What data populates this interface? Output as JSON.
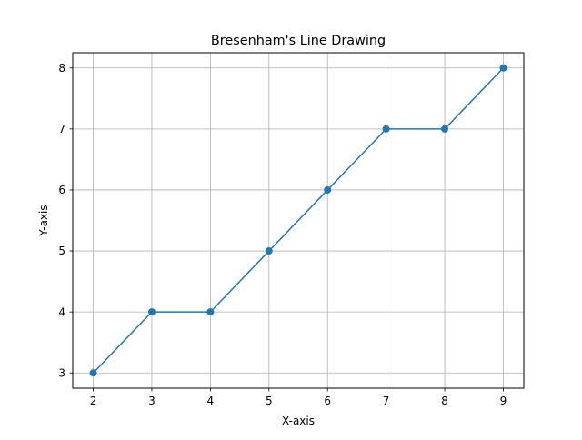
{
  "chart_data": {
    "type": "line",
    "title": "Bresenham's Line Drawing",
    "xlabel": "X-axis",
    "ylabel": "Y-axis",
    "x": [
      2,
      3,
      4,
      5,
      6,
      7,
      8,
      9
    ],
    "series": [
      {
        "values": [
          3,
          4,
          4,
          5,
          6,
          7,
          7,
          8
        ],
        "color": "#1f77b4",
        "marker": "circle"
      }
    ],
    "xlim": [
      1.65,
      9.35
    ],
    "ylim": [
      2.75,
      8.25
    ],
    "xticks": [
      2,
      3,
      4,
      5,
      6,
      7,
      8,
      9
    ],
    "yticks": [
      3,
      4,
      5,
      6,
      7,
      8
    ],
    "grid": true,
    "grid_color": "#b0b0b0"
  }
}
